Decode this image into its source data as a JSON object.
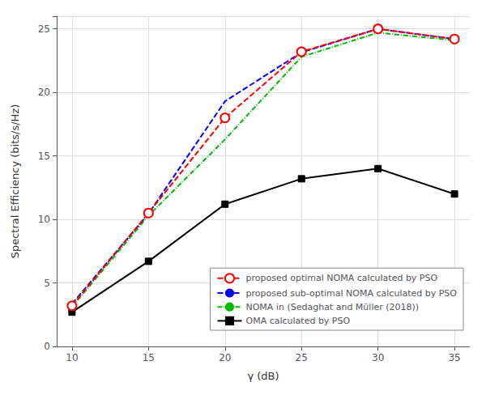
{
  "chart_data": {
    "type": "line",
    "xlabel": "γ (dB)",
    "ylabel": "Spectral Efficiency (bits/s/Hz)",
    "x": [
      10,
      15,
      20,
      25,
      30,
      35
    ],
    "series": [
      {
        "name": "proposed optimal NOMA calculated by PSO",
        "color": "#FF0000",
        "values": [
          3.2,
          10.5,
          18.0,
          23.2,
          25.0,
          24.2
        ],
        "marker": "circle",
        "line_style": "dashed"
      },
      {
        "name": "proposed sub-optimal NOMA calculated by PSO",
        "color": "#0000FF",
        "values": [
          3.35,
          10.45,
          19.3,
          23.15,
          25.0,
          24.2
        ],
        "line_style": "dashed"
      },
      {
        "name": "NOMA in (Sedaghat and Müller (2018))",
        "color": "#00BB00",
        "values": [
          3.1,
          10.3,
          16.3,
          22.8,
          24.7,
          24.1
        ],
        "line_style": "dashdot"
      },
      {
        "name": "OMA calculated by PSO",
        "color": "#000000",
        "values": [
          2.7,
          6.7,
          11.2,
          13.2,
          14.0,
          12.0
        ],
        "marker": "square",
        "line_style": "solid"
      }
    ],
    "xlim": [
      9,
      36
    ],
    "ylim": [
      0,
      26
    ],
    "xticks": [
      10,
      15,
      20,
      25,
      30,
      35
    ],
    "yticks": [
      0,
      5,
      10,
      15,
      20,
      25
    ],
    "grid": true,
    "legend": "lower right"
  }
}
